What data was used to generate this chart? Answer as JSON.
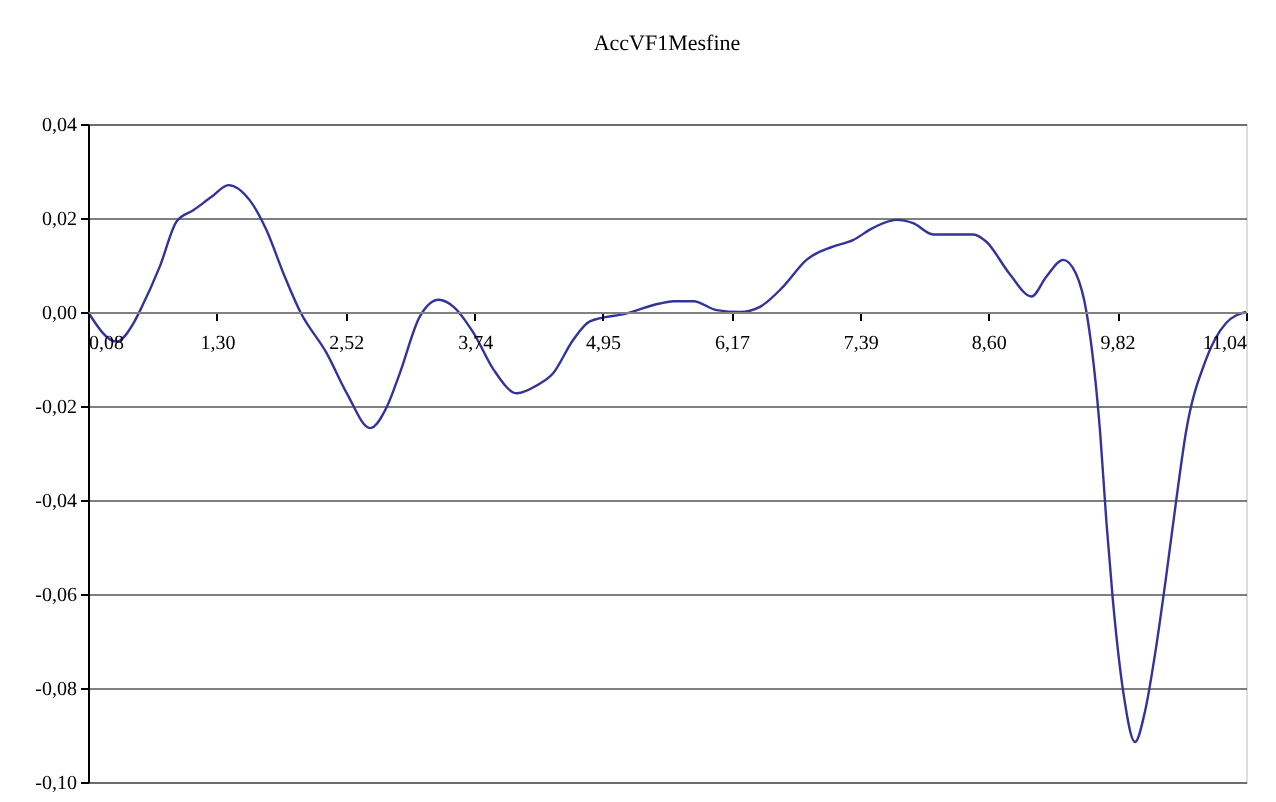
{
  "chart_data": {
    "type": "line",
    "title": "AccVF1Mesfine",
    "x": [
      0.08,
      0.35,
      0.51,
      0.59,
      0.76,
      0.92,
      1.08,
      1.25,
      1.41,
      1.61,
      1.77,
      1.93,
      2.09,
      2.34,
      2.53,
      2.75,
      2.91,
      3.03,
      3.22,
      3.4,
      3.54,
      3.73,
      3.92,
      4.14,
      4.33,
      4.48,
      4.67,
      4.83,
      5.18,
      5.49,
      5.62,
      5.81,
      6.03,
      6.25,
      6.44,
      6.66,
      6.88,
      7.13,
      7.32,
      7.51,
      7.73,
      7.89,
      8.08,
      8.27,
      8.46,
      8.58,
      8.8,
      9.01,
      9.15,
      9.31,
      9.43,
      9.53,
      9.66,
      9.72,
      9.78,
      9.88,
      9.99,
      10.08,
      10.19,
      10.28,
      10.38,
      10.47,
      10.66,
      10.85,
      11.04
    ],
    "series": [
      {
        "color": "#333399",
        "values": [
          0,
          -0.0063,
          -0.0024,
          0.0011,
          0.0097,
          0.0193,
          0.0217,
          0.0245,
          0.027,
          0.0238,
          0.0174,
          0.0082,
          0,
          -0.0088,
          -0.0173,
          -0.0247,
          -0.0201,
          -0.0131,
          -0.001,
          0.0026,
          0.0011,
          -0.0045,
          -0.0123,
          -0.0173,
          -0.0156,
          -0.0131,
          -0.006,
          -0.002,
          -0.0003,
          0.0018,
          0.0023,
          0.0023,
          0.0004,
          0,
          0.0011,
          0.0054,
          0.0111,
          0.0139,
          0.0153,
          0.0179,
          0.0196,
          0.0189,
          0.0165,
          0.0165,
          0.0165,
          0.015,
          0.0082,
          0.0033,
          0.0075,
          0.0111,
          0.0082,
          0,
          -0.0258,
          -0.045,
          -0.0613,
          -0.0811,
          -0.0915,
          -0.0854,
          -0.0712,
          -0.057,
          -0.04,
          -0.0258,
          -0.0102,
          -0.0024,
          0
        ]
      }
    ],
    "xlim": [
      0.08,
      11.04
    ],
    "xticks": [
      {
        "value": 0.08,
        "label": "0,08"
      },
      {
        "value": 1.3,
        "label": "1,30"
      },
      {
        "value": 2.52,
        "label": "2,52"
      },
      {
        "value": 3.74,
        "label": "3,74"
      },
      {
        "value": 4.95,
        "label": "4,95"
      },
      {
        "value": 6.17,
        "label": "6,17"
      },
      {
        "value": 7.39,
        "label": "7,39"
      },
      {
        "value": 8.6,
        "label": "8,60"
      },
      {
        "value": 9.82,
        "label": "9,82"
      },
      {
        "value": 11.04,
        "label": "11,04"
      }
    ],
    "ylim": [
      -0.1,
      0.04
    ],
    "yticks": [
      {
        "value": -0.1,
        "label": "-0,10"
      },
      {
        "value": -0.08,
        "label": "-0,08"
      },
      {
        "value": -0.06,
        "label": "-0,06"
      },
      {
        "value": -0.04,
        "label": "-0,04"
      },
      {
        "value": -0.02,
        "label": "-0,02"
      },
      {
        "value": 0,
        "label": "0,00"
      },
      {
        "value": 0.02,
        "label": "0,02"
      },
      {
        "value": 0.04,
        "label": "0,04"
      }
    ],
    "grid": "y",
    "marker": "none",
    "line_style": "solid"
  }
}
